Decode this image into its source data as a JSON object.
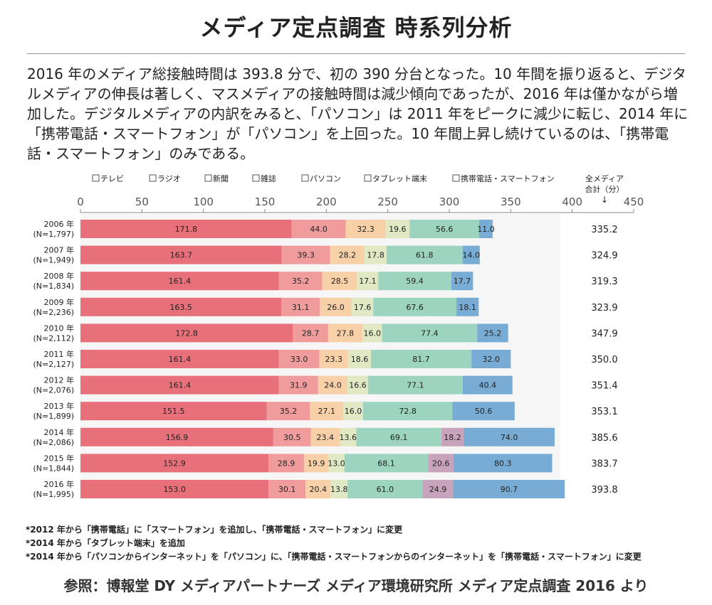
{
  "title": "メディア定点調査 時系列分析",
  "summary": "2016 年のメディア総接触時間は 393.8 分で、初の 390 分台となった。10 年間を振り返ると、デジタルメディアの伸長は著しく、マスメディアの接触時間は減少傾向であったが、2016 年は僅かながら増加した。デジタルメディアの内訳をみると、「パソコン」は 2011 年をピークに減少に転じ、2014 年に「携帯電話・スマートフォン」が「パソコン」を上回った。10 年間上昇し続けているのは、「携帯電話・スマートフォン」のみである。",
  "notes": [
    "*2012 年から「携帯電話」に「スマートフォン」を追加し、「携帯電話・スマートフォン」に変更",
    "*2014 年から「タブレット端末」を追加",
    "*2014 年から「パソコンからインターネット」を「パソコン」に、「携帯電話・スマートフォンからのインターネット」を「携帯電話・スマートフォン」に変更"
  ],
  "source": "参照：博報堂 DY メディアパートナーズ メディア環境研究所 メディア定点調査 2016 より",
  "chart_data": {
    "type": "bar",
    "orientation": "horizontal",
    "stacked": true,
    "legend_position": "top",
    "total_header": [
      "全メディア",
      "合計（分）",
      "↓"
    ],
    "xlim": [
      0,
      450
    ],
    "xticks": [
      0,
      50,
      100,
      150,
      200,
      250,
      300,
      350,
      400,
      450
    ],
    "categories": [
      [
        "2006 年",
        "(N=1,797)"
      ],
      [
        "2007 年",
        "(N=1,949)"
      ],
      [
        "2008 年",
        "(N=1,834)"
      ],
      [
        "2009 年",
        "(N=2,236)"
      ],
      [
        "2010 年",
        "(N=2,112)"
      ],
      [
        "2011 年",
        "(N=2,127)"
      ],
      [
        "2012 年",
        "(N=2,076)"
      ],
      [
        "2013 年",
        "(N=1,899)"
      ],
      [
        "2014 年",
        "(N=2,086)"
      ],
      [
        "2015 年",
        "(N=1,844)"
      ],
      [
        "2016 年",
        "(N=1,995)"
      ]
    ],
    "series": [
      {
        "name": "テレビ",
        "color": "#e8707a",
        "values": [
          171.8,
          163.7,
          161.4,
          163.5,
          172.8,
          161.4,
          161.4,
          151.5,
          156.9,
          152.9,
          153.0
        ]
      },
      {
        "name": "ラジオ",
        "color": "#f09c9c",
        "values": [
          44.0,
          39.3,
          35.2,
          31.1,
          28.7,
          33.0,
          31.9,
          35.2,
          30.5,
          28.9,
          30.1
        ]
      },
      {
        "name": "新聞",
        "color": "#f8d0a8",
        "values": [
          32.3,
          28.2,
          28.5,
          26.0,
          27.8,
          23.3,
          24.0,
          27.1,
          23.4,
          19.9,
          20.4
        ]
      },
      {
        "name": "雑誌",
        "color": "#e0e8c4",
        "values": [
          19.6,
          17.8,
          17.1,
          17.6,
          16.0,
          18.6,
          16.6,
          16.0,
          13.6,
          13.0,
          13.8
        ]
      },
      {
        "name": "パソコン",
        "color": "#9cd4c0",
        "values": [
          56.6,
          61.8,
          59.4,
          67.6,
          77.4,
          81.7,
          77.1,
          72.8,
          69.1,
          68.1,
          61.0
        ]
      },
      {
        "name": "タブレット端末",
        "color": "#c8a4bc",
        "values": [
          null,
          null,
          null,
          null,
          null,
          null,
          null,
          null,
          18.2,
          20.6,
          24.9
        ]
      },
      {
        "name": "携帯電話・スマートフォン",
        "color": "#78acd4",
        "values": [
          11.0,
          14.0,
          17.7,
          18.1,
          25.2,
          32.0,
          40.4,
          50.6,
          74.0,
          80.3,
          90.7
        ]
      }
    ],
    "totals": [
      "335.2",
      "324.9",
      "319.3",
      "323.9",
      "347.9",
      "350.0",
      "351.4",
      "353.1",
      "385.6",
      "383.7",
      "393.8"
    ]
  }
}
